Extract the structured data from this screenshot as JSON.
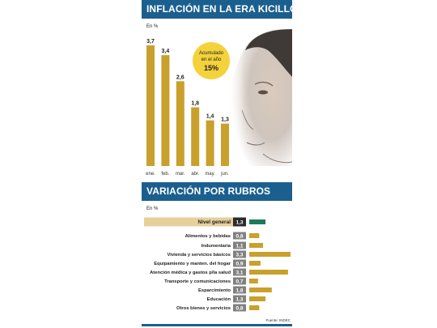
{
  "colors": {
    "banner": "#1b5f8e",
    "bar": "#c9a02c",
    "highlight_bar": "#1e7a5c",
    "value_box": "#808080",
    "highlight_value_box": "#2b2b2b",
    "highlight_label_bg": "#e6cf9a",
    "bubble": "#f3d23b"
  },
  "section1": {
    "title": "INFLACIÓN EN LA ERA KICILLOF",
    "unit": "En %",
    "bubble": {
      "line1": "Acumulado",
      "line2": "en el año",
      "value": "15%"
    }
  },
  "section2": {
    "title": "VARIACIÓN POR RUBROS",
    "unit": "En %",
    "source": "Fuente: INDEC"
  },
  "chart_data": [
    {
      "type": "bar",
      "title": "INFLACIÓN EN LA ERA KICILLOF",
      "ylabel": "En %",
      "categories": [
        "ene.",
        "feb.",
        "mar.",
        "abr.",
        "may.",
        "jun."
      ],
      "values": [
        3.7,
        3.4,
        2.6,
        1.8,
        1.4,
        1.3
      ],
      "value_labels": [
        "3,7",
        "3,4",
        "2,6",
        "1,8",
        "1,4",
        "1,3"
      ],
      "ylim": [
        0,
        3.7
      ],
      "grid": false
    },
    {
      "type": "bar",
      "orientation": "horizontal",
      "title": "VARIACIÓN POR RUBROS",
      "xlabel": "En %",
      "categories": [
        "Nivel general",
        "Alimentos y bebidas",
        "Indumentaria",
        "Vivienda y servicios básicos",
        "Equipamiento y manten. del hogar",
        "Atención médica y gastos p/la salud",
        "Transporte y comunicaciones",
        "Esparcimiento",
        "Educación",
        "Otros bienes y servicios"
      ],
      "values": [
        1.3,
        0.8,
        1.1,
        3.3,
        0.9,
        3.1,
        0.7,
        1.8,
        1.3,
        0.8
      ],
      "value_labels": [
        "1,3",
        "0,8",
        "1,1",
        "3,3",
        "0,9",
        "3,1",
        "0,7",
        "1,8",
        "1,3",
        "0,8"
      ],
      "highlight": "Nivel general",
      "xlim": [
        0,
        3.3
      ],
      "grid": false
    }
  ]
}
